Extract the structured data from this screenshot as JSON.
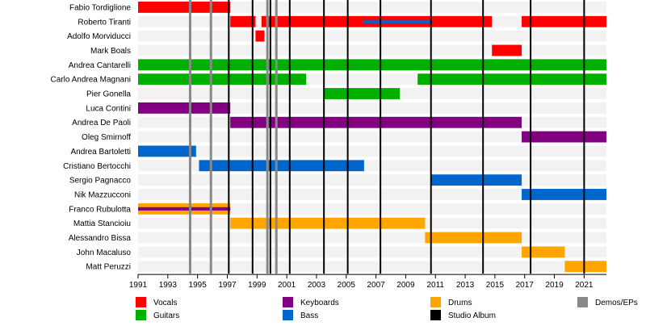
{
  "chart_data": {
    "type": "timeline",
    "x_ticks": [
      "1991",
      "1993",
      "1995",
      "1997",
      "1999",
      "2001",
      "2003",
      "2005",
      "2007",
      "2009",
      "2011",
      "2013",
      "2015",
      "2017",
      "2019",
      "2021"
    ],
    "xlim": [
      1991,
      2022.5
    ],
    "grid": true,
    "legend_position": "bottom",
    "members": [
      "Fabio Tordiglione",
      "Roberto Tiranti",
      "Adolfo Morviducci",
      "Mark Boals",
      "Andrea Cantarelli",
      "Carlo Andrea Magnani",
      "Pier Gonella",
      "Luca Contini",
      "Andrea De Paoli",
      "Oleg Smirnoff",
      "Andrea Bartoletti",
      "Cristiano Bertocchi",
      "Sergio Pagnacco",
      "Nik Mazzucconi",
      "Franco Rubulotta",
      "Mattia Stancioiu",
      "Alessandro Bissa",
      "John Macaluso",
      "Matt Peruzzi"
    ],
    "roles": [
      {
        "key": "vocals",
        "label": "Vocals",
        "color": "#ff0000"
      },
      {
        "key": "guitars",
        "label": "Guitars",
        "color": "#00b000"
      },
      {
        "key": "keyboards",
        "label": "Keyboards",
        "color": "#800080"
      },
      {
        "key": "bass",
        "label": "Bass",
        "color": "#0066cc"
      },
      {
        "key": "drums",
        "label": "Drums",
        "color": "#ffa500"
      },
      {
        "key": "studio",
        "label": "Studio Album",
        "color": "#000000"
      },
      {
        "key": "demos",
        "label": "Demos/EPs",
        "color": "#888888"
      }
    ],
    "bars": [
      {
        "member": 0,
        "role": "vocals",
        "start": 1991.0,
        "end": 1997.2
      },
      {
        "member": 1,
        "role": "vocals",
        "start": 1997.2,
        "end": 1998.9
      },
      {
        "member": 1,
        "role": "vocals",
        "start": 1999.3,
        "end": 2014.8
      },
      {
        "member": 1,
        "role": "bass",
        "start": 2006.1,
        "end": 2010.7,
        "thin": true
      },
      {
        "member": 1,
        "role": "vocals",
        "start": 2016.8,
        "end": 2022.5
      },
      {
        "member": 2,
        "role": "vocals",
        "start": 1998.9,
        "end": 1999.5
      },
      {
        "member": 3,
        "role": "vocals",
        "start": 2014.8,
        "end": 2016.8
      },
      {
        "member": 4,
        "role": "guitars",
        "start": 1991.0,
        "end": 2022.5
      },
      {
        "member": 5,
        "role": "guitars",
        "start": 1991.0,
        "end": 2002.3
      },
      {
        "member": 5,
        "role": "guitars",
        "start": 2009.8,
        "end": 2022.5
      },
      {
        "member": 6,
        "role": "guitars",
        "start": 2003.5,
        "end": 2008.6
      },
      {
        "member": 7,
        "role": "keyboards",
        "start": 1991.0,
        "end": 1997.2
      },
      {
        "member": 8,
        "role": "keyboards",
        "start": 1997.2,
        "end": 2016.8
      },
      {
        "member": 9,
        "role": "keyboards",
        "start": 2016.8,
        "end": 2022.5
      },
      {
        "member": 10,
        "role": "bass",
        "start": 1991.0,
        "end": 1994.9
      },
      {
        "member": 11,
        "role": "bass",
        "start": 1995.1,
        "end": 2006.2
      },
      {
        "member": 12,
        "role": "bass",
        "start": 2010.7,
        "end": 2016.8
      },
      {
        "member": 13,
        "role": "bass",
        "start": 2016.8,
        "end": 2022.5
      },
      {
        "member": 14,
        "role": "drums",
        "start": 1991.0,
        "end": 1997.2
      },
      {
        "member": 14,
        "role": "keyboards",
        "start": 1991.0,
        "end": 1997.2,
        "thin": true
      },
      {
        "member": 15,
        "role": "drums",
        "start": 1997.2,
        "end": 2010.3
      },
      {
        "member": 16,
        "role": "drums",
        "start": 2010.3,
        "end": 2016.8
      },
      {
        "member": 17,
        "role": "drums",
        "start": 2016.8,
        "end": 2019.7
      },
      {
        "member": 18,
        "role": "drums",
        "start": 2019.7,
        "end": 2022.5
      }
    ],
    "studio_albums": [
      1997.1,
      1998.7,
      1999.9,
      2001.2,
      2003.5,
      2005.1,
      2007.3,
      2010.7,
      2014.2,
      2017.4,
      2021.0
    ],
    "demos_eps": [
      1994.5,
      1995.9,
      1999.7,
      2000.3
    ]
  }
}
